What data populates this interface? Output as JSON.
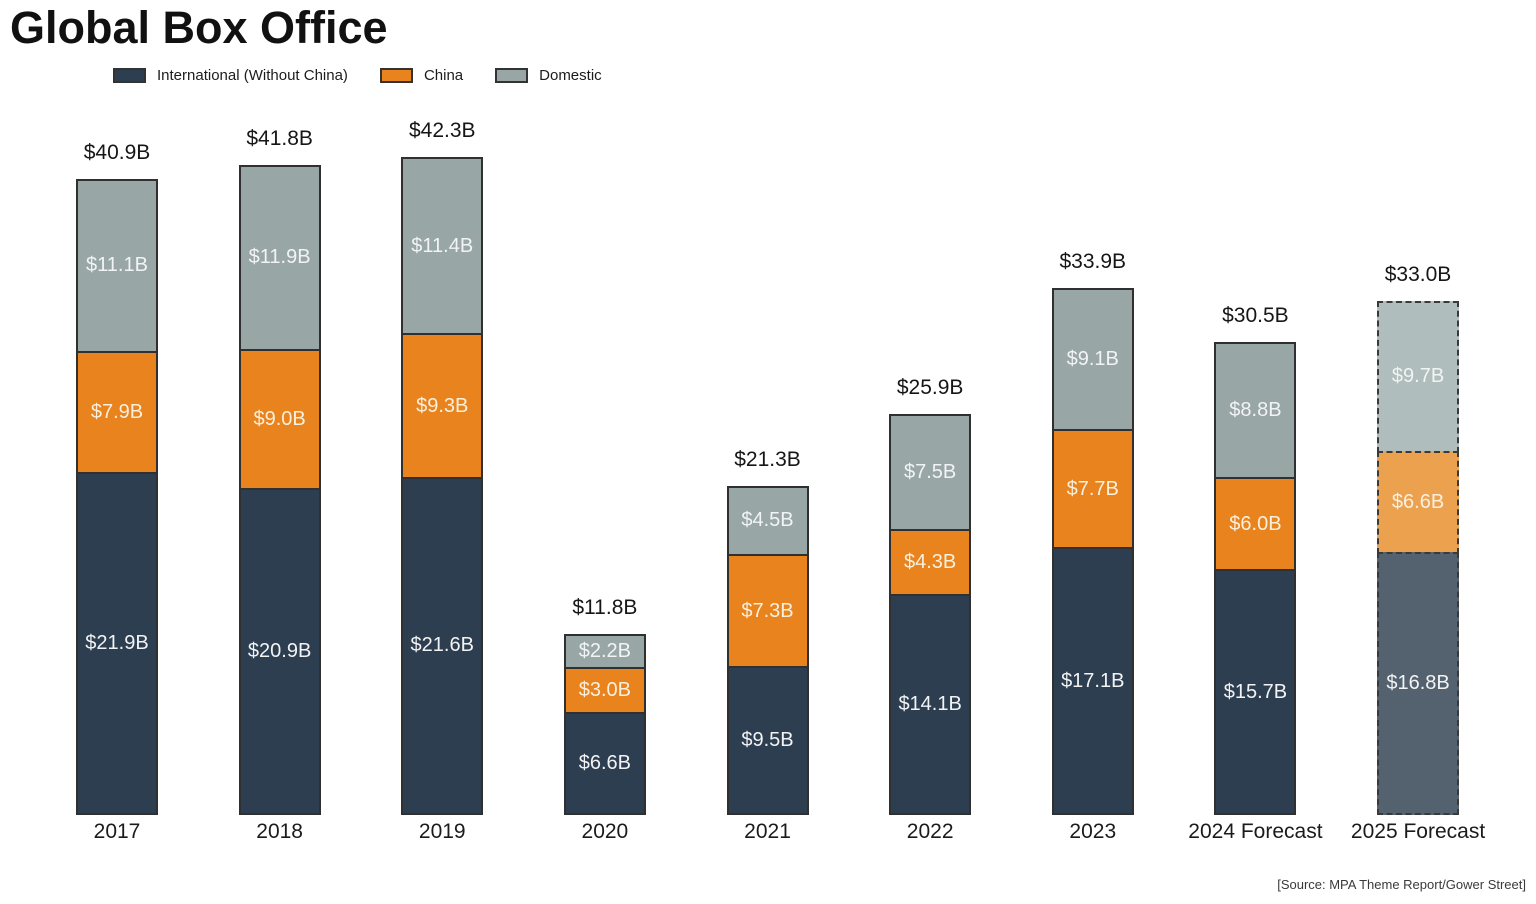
{
  "title": "Global Box Office",
  "legend": [
    {
      "key": "international",
      "label": "International (Without China)",
      "color": "#2d3e50"
    },
    {
      "key": "china",
      "label": "China",
      "color": "#e8831e"
    },
    {
      "key": "domestic",
      "label": "Domestic",
      "color": "#98a6a6"
    }
  ],
  "source": "[Source: MPA Theme Report/Gower Street]",
  "colors": {
    "international": "#2d3e50",
    "china": "#e8831e",
    "domestic": "#98a6a6",
    "international_forecast_muted": "#54626f",
    "china_forecast_muted": "#eca14f",
    "domestic_forecast_muted": "#afbdbc",
    "segment_border": "#303030"
  },
  "chart_data": {
    "type": "bar",
    "stacked": true,
    "title": "Global Box Office",
    "legend_position": "top-left",
    "grid": false,
    "axes_hidden": true,
    "value_axis_range_billions": [
      0,
      42.3
    ],
    "categories": [
      "2017",
      "2018",
      "2019",
      "2020",
      "2021",
      "2022",
      "2023",
      "2024 Forecast",
      "2025 Forecast"
    ],
    "series": [
      {
        "name": "International (Without China)",
        "color": "#2d3e50",
        "values": [
          21.9,
          20.9,
          21.6,
          6.6,
          9.5,
          14.1,
          17.1,
          15.7,
          16.8
        ]
      },
      {
        "name": "China",
        "color": "#e8831e",
        "values": [
          7.9,
          9.0,
          9.3,
          3.0,
          7.3,
          4.3,
          7.7,
          6.0,
          6.6
        ]
      },
      {
        "name": "Domestic",
        "color": "#98a6a6",
        "values": [
          11.1,
          11.9,
          11.4,
          2.2,
          4.5,
          7.5,
          9.1,
          8.8,
          9.7
        ]
      }
    ],
    "totals": [
      40.9,
      41.8,
      42.3,
      11.8,
      21.3,
      25.9,
      33.9,
      30.5,
      33.0
    ],
    "bars": [
      {
        "category": "2017",
        "total_label": "$40.9B",
        "dashed": false,
        "segments": [
          {
            "series": "international",
            "value": 21.9,
            "label": "$21.9B"
          },
          {
            "series": "china",
            "value": 7.9,
            "label": "$7.9B"
          },
          {
            "series": "domestic",
            "value": 11.1,
            "label": "$11.1B"
          }
        ]
      },
      {
        "category": "2018",
        "total_label": "$41.8B",
        "dashed": false,
        "segments": [
          {
            "series": "international",
            "value": 20.9,
            "label": "$20.9B"
          },
          {
            "series": "china",
            "value": 9.0,
            "label": "$9.0B"
          },
          {
            "series": "domestic",
            "value": 11.9,
            "label": "$11.9B"
          }
        ]
      },
      {
        "category": "2019",
        "total_label": "$42.3B",
        "dashed": false,
        "segments": [
          {
            "series": "international",
            "value": 21.6,
            "label": "$21.6B"
          },
          {
            "series": "china",
            "value": 9.3,
            "label": "$9.3B"
          },
          {
            "series": "domestic",
            "value": 11.4,
            "label": "$11.4B"
          }
        ]
      },
      {
        "category": "2020",
        "total_label": "$11.8B",
        "dashed": false,
        "segments": [
          {
            "series": "international",
            "value": 6.6,
            "label": "$6.6B"
          },
          {
            "series": "china",
            "value": 3.0,
            "label": "$3.0B"
          },
          {
            "series": "domestic",
            "value": 2.2,
            "label": "$2.2B"
          }
        ]
      },
      {
        "category": "2021",
        "total_label": "$21.3B",
        "dashed": false,
        "segments": [
          {
            "series": "international",
            "value": 9.5,
            "label": "$9.5B"
          },
          {
            "series": "china",
            "value": 7.3,
            "label": "$7.3B"
          },
          {
            "series": "domestic",
            "value": 4.5,
            "label": "$4.5B"
          }
        ]
      },
      {
        "category": "2022",
        "total_label": "$25.9B",
        "dashed": false,
        "segments": [
          {
            "series": "international",
            "value": 14.1,
            "label": "$14.1B"
          },
          {
            "series": "china",
            "value": 4.3,
            "label": "$4.3B"
          },
          {
            "series": "domestic",
            "value": 7.5,
            "label": "$7.5B"
          }
        ]
      },
      {
        "category": "2023",
        "total_label": "$33.9B",
        "dashed": false,
        "segments": [
          {
            "series": "international",
            "value": 17.1,
            "label": "$17.1B"
          },
          {
            "series": "china",
            "value": 7.7,
            "label": "$7.7B"
          },
          {
            "series": "domestic",
            "value": 9.1,
            "label": "$9.1B"
          }
        ]
      },
      {
        "category": "2024 Forecast",
        "total_label": "$30.5B",
        "dashed": false,
        "segments": [
          {
            "series": "international",
            "value": 15.7,
            "label": "$15.7B"
          },
          {
            "series": "china",
            "value": 6.0,
            "label": "$6.0B"
          },
          {
            "series": "domestic",
            "value": 8.8,
            "label": "$8.8B"
          }
        ]
      },
      {
        "category": "2025 Forecast",
        "total_label": "$33.0B",
        "dashed": true,
        "segments": [
          {
            "series": "international",
            "value": 16.8,
            "label": "$16.8B"
          },
          {
            "series": "china",
            "value": 6.6,
            "label": "$6.6B"
          },
          {
            "series": "domestic",
            "value": 9.7,
            "label": "$9.7B"
          }
        ]
      }
    ]
  }
}
